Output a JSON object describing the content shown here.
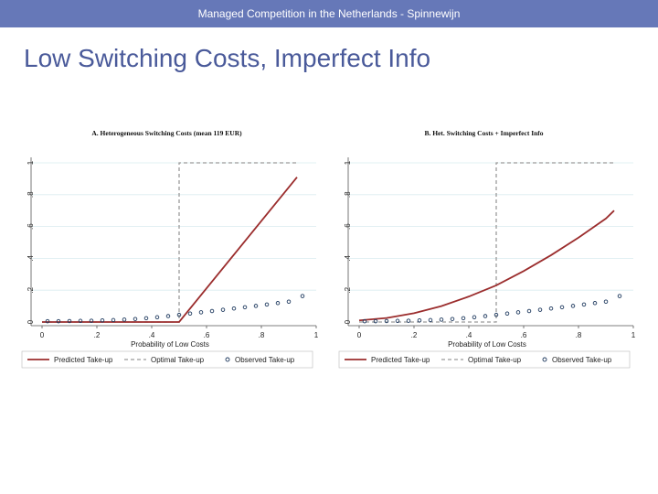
{
  "header": {
    "text": "Managed Competition in the Netherlands - Spinnewijn"
  },
  "slide": {
    "title": "Low Switching Costs, Imperfect Info"
  },
  "colors": {
    "header_bg": "#6678b8",
    "title": "#4a5a9a",
    "predicted": "#9b2d2d",
    "optimal": "#9a9a9a",
    "observed": "#1f3a5f",
    "grid": "#d9ecef"
  },
  "chart_data": [
    {
      "type": "line",
      "title": "A. Heterogeneous Switching Costs (mean 119 EUR)",
      "xlabel": "Probability of Low Costs",
      "ylabel": "",
      "xlim": [
        0,
        1
      ],
      "ylim": [
        0,
        1
      ],
      "xticks": [
        "0",
        ".2",
        ".4",
        ".6",
        ".8",
        "1"
      ],
      "yticks": [
        "0",
        ".2",
        ".4",
        ".6",
        ".8",
        "1"
      ],
      "legend": [
        "Predicted Take-up",
        "Optimal Take-up",
        "Observed Take-up"
      ],
      "series": [
        {
          "name": "Predicted Take-up",
          "style": "line",
          "x": [
            0,
            0.5,
            0.93
          ],
          "y": [
            0,
            0,
            0.91
          ]
        },
        {
          "name": "Optimal Take-up",
          "style": "dashed",
          "x": [
            0,
            0.5,
            0.5,
            0.93
          ],
          "y": [
            0,
            0,
            1,
            1
          ]
        },
        {
          "name": "Observed Take-up",
          "style": "markers",
          "x": [
            0.02,
            0.06,
            0.1,
            0.14,
            0.18,
            0.22,
            0.26,
            0.3,
            0.34,
            0.38,
            0.42,
            0.46,
            0.5,
            0.54,
            0.58,
            0.62,
            0.66,
            0.7,
            0.74,
            0.78,
            0.82,
            0.86,
            0.9,
            0.95
          ],
          "y": [
            0.005,
            0.005,
            0.006,
            0.007,
            0.008,
            0.01,
            0.012,
            0.015,
            0.019,
            0.024,
            0.03,
            0.037,
            0.045,
            0.053,
            0.061,
            0.069,
            0.077,
            0.085,
            0.093,
            0.101,
            0.11,
            0.119,
            0.128,
            0.163
          ]
        }
      ]
    },
    {
      "type": "line",
      "title": "B. Het. Switching Costs + Imperfect Info",
      "xlabel": "Probability of Low Costs",
      "ylabel": "",
      "xlim": [
        0,
        1
      ],
      "ylim": [
        0,
        1
      ],
      "xticks": [
        "0",
        ".2",
        ".4",
        ".6",
        ".8",
        "1"
      ],
      "yticks": [
        "0",
        ".2",
        ".4",
        ".6",
        ".8",
        "1"
      ],
      "legend": [
        "Predicted Take-up",
        "Optimal Take-up",
        "Observed Take-up"
      ],
      "series": [
        {
          "name": "Predicted Take-up",
          "style": "line",
          "x": [
            0,
            0.1,
            0.2,
            0.3,
            0.4,
            0.5,
            0.6,
            0.7,
            0.8,
            0.9,
            0.93
          ],
          "y": [
            0.01,
            0.025,
            0.055,
            0.1,
            0.16,
            0.23,
            0.32,
            0.42,
            0.53,
            0.65,
            0.7
          ]
        },
        {
          "name": "Optimal Take-up",
          "style": "dashed",
          "x": [
            0,
            0.5,
            0.5,
            0.93
          ],
          "y": [
            0,
            0,
            1,
            1
          ]
        },
        {
          "name": "Observed Take-up",
          "style": "markers",
          "x": [
            0.02,
            0.06,
            0.1,
            0.14,
            0.18,
            0.22,
            0.26,
            0.3,
            0.34,
            0.38,
            0.42,
            0.46,
            0.5,
            0.54,
            0.58,
            0.62,
            0.66,
            0.7,
            0.74,
            0.78,
            0.82,
            0.86,
            0.9,
            0.95
          ],
          "y": [
            0.005,
            0.005,
            0.006,
            0.007,
            0.008,
            0.01,
            0.012,
            0.015,
            0.019,
            0.024,
            0.03,
            0.037,
            0.045,
            0.053,
            0.061,
            0.069,
            0.077,
            0.085,
            0.093,
            0.101,
            0.11,
            0.119,
            0.128,
            0.163
          ]
        }
      ]
    }
  ]
}
